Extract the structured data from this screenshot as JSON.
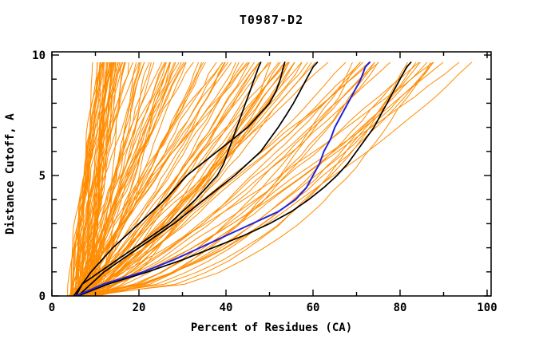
{
  "figure": {
    "window_background": "#ffffff"
  },
  "chart_data": {
    "type": "line",
    "title": "T0987-D2",
    "xlabel": "Percent of Residues (CA)",
    "ylabel": "Distance Cutoff, A",
    "xlim": [
      0,
      100
    ],
    "ylim": [
      0,
      10
    ],
    "x_major_ticks": [
      0,
      20,
      40,
      60,
      80,
      100
    ],
    "x_minor_ticks": [
      10,
      30,
      50,
      70,
      90
    ],
    "y_major_ticks": [
      0,
      5,
      10
    ],
    "y_minor_ticks": [
      1,
      2,
      3,
      4,
      6,
      7,
      8,
      9
    ],
    "grid": false,
    "legend": "none",
    "colors": {
      "ensemble": "#ff8c00",
      "highlight": "#2222dd",
      "reference": "#000000",
      "axis": "#000000",
      "background": "#ffffff"
    },
    "series": [
      {
        "id": "black-curve-1",
        "color": "#000000",
        "width": 1.7,
        "points": [
          [
            0,
            5
          ],
          [
            0.5,
            7
          ],
          [
            1,
            11
          ],
          [
            1.5,
            15
          ],
          [
            2,
            19
          ],
          [
            2.5,
            23
          ],
          [
            3,
            27
          ],
          [
            3.5,
            30
          ],
          [
            4,
            33
          ],
          [
            4.5,
            35.5
          ],
          [
            5,
            38
          ],
          [
            5.5,
            39.5
          ],
          [
            6,
            40.5
          ],
          [
            6.5,
            41.5
          ],
          [
            7,
            42.5
          ],
          [
            7.5,
            43.5
          ],
          [
            8,
            44.5
          ],
          [
            8.5,
            45.5
          ],
          [
            9,
            46.5
          ],
          [
            9.5,
            47.5
          ],
          [
            9.7,
            48
          ]
        ]
      },
      {
        "id": "black-curve-2",
        "color": "#000000",
        "width": 1.7,
        "points": [
          [
            0,
            5.5
          ],
          [
            0.5,
            7
          ],
          [
            1,
            9
          ],
          [
            1.5,
            11.5
          ],
          [
            2,
            14
          ],
          [
            2.5,
            17
          ],
          [
            3,
            20
          ],
          [
            3.5,
            23
          ],
          [
            4,
            26
          ],
          [
            4.5,
            28.5
          ],
          [
            5,
            31
          ],
          [
            5.5,
            34.5
          ],
          [
            6,
            38
          ],
          [
            6.5,
            41.5
          ],
          [
            7,
            45
          ],
          [
            7.5,
            47.5
          ],
          [
            8,
            50
          ],
          [
            8.5,
            51.5
          ],
          [
            9,
            52.5
          ],
          [
            9.5,
            53.2
          ],
          [
            9.7,
            53.5
          ]
        ]
      },
      {
        "id": "black-curve-3",
        "color": "#000000",
        "width": 1.7,
        "points": [
          [
            0,
            6
          ],
          [
            0.5,
            9
          ],
          [
            1,
            12
          ],
          [
            1.5,
            16
          ],
          [
            2,
            20
          ],
          [
            2.5,
            24
          ],
          [
            3,
            28
          ],
          [
            3.5,
            31.5
          ],
          [
            4,
            35
          ],
          [
            4.5,
            38.5
          ],
          [
            5,
            42
          ],
          [
            5.5,
            45
          ],
          [
            6,
            48
          ],
          [
            6.5,
            50
          ],
          [
            7,
            52
          ],
          [
            7.5,
            53.8
          ],
          [
            8,
            55.5
          ],
          [
            8.5,
            57
          ],
          [
            9,
            58.5
          ],
          [
            9.5,
            60
          ],
          [
            9.7,
            61
          ]
        ]
      },
      {
        "id": "black-curve-4",
        "color": "#000000",
        "width": 1.7,
        "points": [
          [
            0,
            6
          ],
          [
            0.5,
            13
          ],
          [
            1,
            22
          ],
          [
            1.5,
            30
          ],
          [
            2,
            37
          ],
          [
            2.5,
            44
          ],
          [
            3,
            50
          ],
          [
            3.5,
            55
          ],
          [
            4,
            59
          ],
          [
            4.5,
            62.5
          ],
          [
            5,
            65.5
          ],
          [
            5.5,
            68
          ],
          [
            6,
            70
          ],
          [
            6.5,
            72
          ],
          [
            7,
            74
          ],
          [
            7.5,
            75.5
          ],
          [
            8,
            77
          ],
          [
            8.5,
            78.5
          ],
          [
            9,
            80
          ],
          [
            9.5,
            81.5
          ],
          [
            9.7,
            82.5
          ]
        ]
      },
      {
        "id": "blue-curve",
        "color": "#2222dd",
        "width": 2,
        "points": [
          [
            0,
            5.5
          ],
          [
            0.5,
            12
          ],
          [
            1,
            21
          ],
          [
            1.5,
            28
          ],
          [
            2,
            34
          ],
          [
            2.5,
            40
          ],
          [
            3,
            46
          ],
          [
            3.5,
            52
          ],
          [
            4,
            56
          ],
          [
            4.5,
            58.5
          ],
          [
            5,
            60
          ],
          [
            5.5,
            61.5
          ],
          [
            6,
            62.5
          ],
          [
            6.5,
            64
          ],
          [
            7,
            65
          ],
          [
            7.5,
            66.5
          ],
          [
            8,
            68
          ],
          [
            8.5,
            69.5
          ],
          [
            9,
            71
          ],
          [
            9.5,
            72
          ],
          [
            9.7,
            73
          ]
        ]
      }
    ],
    "ensemble": {
      "description": "dense fan of model accuracy curves, cumulative percent of CA residues under each distance cutoff",
      "count": 130,
      "color": "#ff8c00",
      "width": 1,
      "start_percent_range": [
        3.5,
        10.5
      ],
      "end_percent_range": [
        12,
        94
      ],
      "cutoff_range": [
        0,
        9.7
      ],
      "density_bias": "left-heavy"
    }
  }
}
